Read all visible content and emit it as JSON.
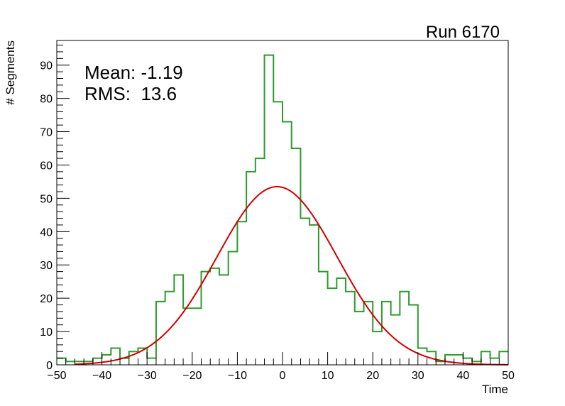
{
  "chart_data": {
    "type": "bar",
    "title": "Run 6170",
    "xlabel": "Time",
    "ylabel": "# Segments",
    "xlim": [
      -50,
      50
    ],
    "ylim": [
      0,
      97.4
    ],
    "bin_width": 2,
    "bin_edges_start": -50,
    "xticks": [
      -50,
      -40,
      -30,
      -20,
      -10,
      0,
      10,
      20,
      30,
      40,
      50
    ],
    "xtick_labels": [
      "−50",
      "−40",
      "−30",
      "−20",
      "−10",
      "0",
      "10",
      "20",
      "30",
      "40",
      "50"
    ],
    "yticks": [
      0,
      10,
      20,
      30,
      40,
      50,
      60,
      70,
      80,
      90
    ],
    "ytick_labels": [
      "0",
      "10",
      "20",
      "30",
      "40",
      "50",
      "60",
      "70",
      "80",
      "90"
    ],
    "series": [
      {
        "name": "histogram",
        "color": "#2e9a2e",
        "values": [
          2,
          1,
          1,
          1,
          2,
          3,
          5,
          2,
          4,
          5,
          2,
          19,
          22,
          27,
          17,
          17,
          28,
          29,
          27,
          34,
          43,
          58,
          62,
          93,
          79,
          73,
          65,
          44,
          42,
          28,
          23,
          26,
          22,
          16,
          19,
          10,
          19,
          15,
          22,
          18,
          5,
          4,
          1,
          3,
          3,
          2,
          1,
          4,
          2,
          4
        ]
      },
      {
        "name": "gaussian-fit",
        "color": "#d00000",
        "type": "line",
        "constant": 53.5,
        "mean": -1.2,
        "sigma": 13.3
      }
    ],
    "stats": {
      "mean_label": "Mean: -1.19",
      "rms_label": "RMS:  13.6"
    }
  }
}
